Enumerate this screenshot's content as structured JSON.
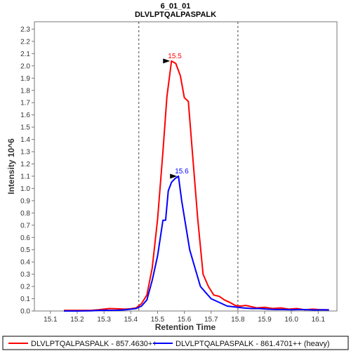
{
  "chart_data": {
    "type": "line",
    "title": "6_01_01",
    "subtitle": "DLVLPTQALPASPALK",
    "xlabel": "Retention Time",
    "ylabel": "Intensity 10^6",
    "xlim": [
      15.04,
      16.17
    ],
    "ylim": [
      0,
      2.36
    ],
    "x_ticks": [
      "15.1",
      "15.2",
      "15.3",
      "15.4",
      "15.5",
      "15.6",
      "15.7",
      "15.8",
      "15.9",
      "16.0",
      "16.1"
    ],
    "y_ticks": [
      "0.0",
      "0.1",
      "0.2",
      "0.3",
      "0.4",
      "0.5",
      "0.6",
      "0.7",
      "0.8",
      "0.9",
      "1.0",
      "1.1",
      "1.2",
      "1.3",
      "1.4",
      "1.5",
      "1.6",
      "1.7",
      "1.8",
      "1.9",
      "2.0",
      "2.1",
      "2.2",
      "2.3"
    ],
    "integration_bounds": [
      15.43,
      15.8
    ],
    "grid": false,
    "legend_position": "bottom",
    "series": [
      {
        "name": "DLVLPTQALPASPALK - 857.4630++",
        "color": "#ff0000",
        "peak_label": "15.5",
        "peak": [
          15.552,
          2.04
        ],
        "x": [
          15.15,
          15.2,
          15.25,
          15.28,
          15.3,
          15.32,
          15.35,
          15.38,
          15.4,
          15.42,
          15.44,
          15.46,
          15.48,
          15.5,
          15.52,
          15.535,
          15.552,
          15.568,
          15.585,
          15.6,
          15.615,
          15.63,
          15.65,
          15.67,
          15.69,
          15.71,
          15.73,
          15.75,
          15.77,
          15.79,
          15.81,
          15.83,
          15.85,
          15.87,
          15.9,
          15.93,
          15.96,
          15.99,
          16.02,
          16.05,
          16.08,
          16.11,
          16.14
        ],
        "y": [
          0.005,
          0.005,
          0.005,
          0.01,
          0.015,
          0.02,
          0.018,
          0.015,
          0.018,
          0.025,
          0.06,
          0.13,
          0.35,
          0.75,
          1.3,
          1.75,
          2.04,
          2.02,
          1.92,
          1.74,
          1.71,
          1.3,
          0.75,
          0.3,
          0.2,
          0.13,
          0.12,
          0.09,
          0.07,
          0.045,
          0.04,
          0.045,
          0.035,
          0.025,
          0.03,
          0.02,
          0.025,
          0.015,
          0.02,
          0.01,
          0.015,
          0.01,
          0.01
        ]
      },
      {
        "name": "DLVLPTQALPASPALK - 861.4701++ (heavy)",
        "color": "#0000ff",
        "peak_label": "15.6",
        "peak": [
          15.578,
          1.1
        ],
        "x": [
          15.15,
          15.2,
          15.25,
          15.28,
          15.3,
          15.32,
          15.35,
          15.38,
          15.4,
          15.42,
          15.44,
          15.46,
          15.48,
          15.5,
          15.52,
          15.53,
          15.54,
          15.552,
          15.565,
          15.578,
          15.59,
          15.605,
          15.62,
          15.64,
          15.66,
          15.68,
          15.7,
          15.72,
          15.74,
          15.76,
          15.78,
          15.8,
          15.82,
          15.85,
          15.88,
          15.91,
          15.94,
          15.97,
          16.0,
          16.03,
          16.06,
          16.09,
          16.12,
          16.14
        ],
        "y": [
          0.0,
          0.0,
          0.002,
          0.005,
          0.006,
          0.005,
          0.006,
          0.01,
          0.015,
          0.02,
          0.04,
          0.09,
          0.25,
          0.45,
          0.74,
          0.74,
          0.98,
          1.05,
          1.08,
          1.1,
          0.9,
          0.7,
          0.5,
          0.35,
          0.2,
          0.15,
          0.1,
          0.08,
          0.06,
          0.04,
          0.035,
          0.03,
          0.025,
          0.02,
          0.02,
          0.015,
          0.012,
          0.012,
          0.01,
          0.012,
          0.01,
          0.008,
          0.01,
          0.008
        ]
      }
    ]
  }
}
